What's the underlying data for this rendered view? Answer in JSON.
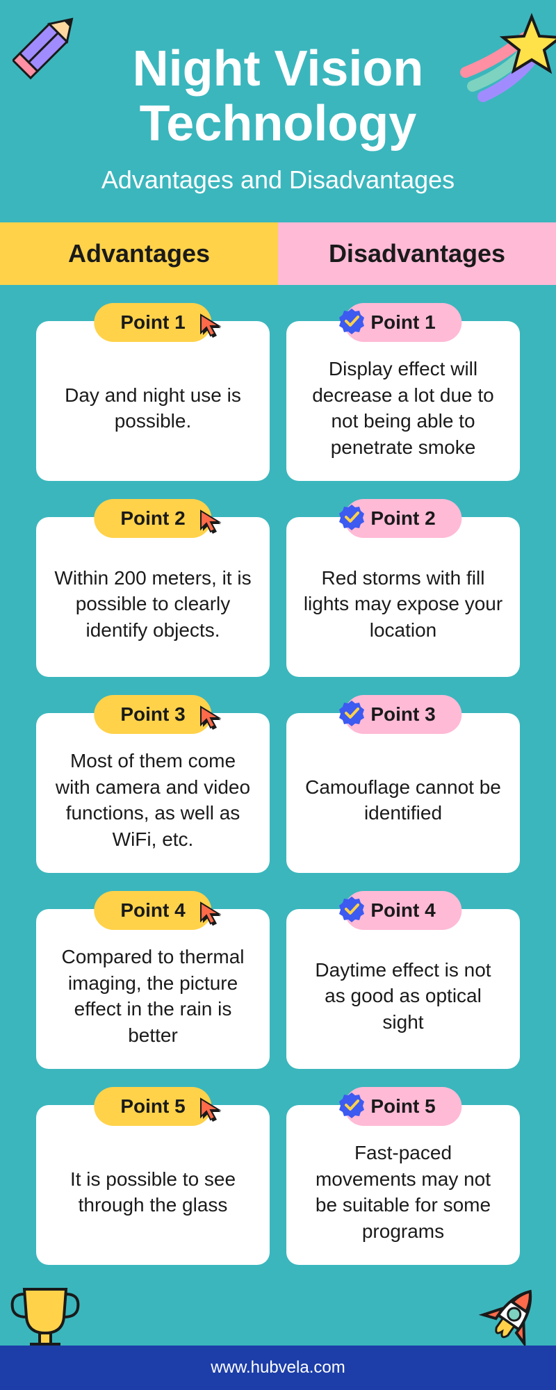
{
  "title": "Night Vision Technology",
  "subtitle": "Advantages and Disadvantages",
  "columns": {
    "advantages_label": "Advantages",
    "disadvantages_label": "Disadvantages"
  },
  "colors": {
    "background": "#3bb6bd",
    "adv_color": "#ffd24a",
    "dis_color": "#ffbad6",
    "card_bg": "#ffffff",
    "footer_bg": "#1d3ea8",
    "title_color": "#ffffff",
    "text_color": "#1a1a1a",
    "cursor_fill": "#ff6b4a",
    "cursor_shadow": "#1a1a1a",
    "badge_fill": "#3d5af1",
    "badge_check": "#ffd24a"
  },
  "typography": {
    "title_size": 72,
    "subtitle_size": 36,
    "header_size": 36,
    "pill_size": 28,
    "body_size": 28,
    "footer_size": 24
  },
  "layout": {
    "card_radius": 18,
    "pill_radius": 999,
    "card_min_height": 230
  },
  "advantages": [
    {
      "pill": "Point 1",
      "text": "Day and night use is possible."
    },
    {
      "pill": "Point 2",
      "text": "Within 200 meters, it is possible to clearly identify objects."
    },
    {
      "pill": "Point 3",
      "text": "Most of them come with camera and video functions, as well as WiFi, etc."
    },
    {
      "pill": "Point 4",
      "text": "Compared to thermal imaging, the picture effect in the rain is better"
    },
    {
      "pill": "Point 5",
      "text": "It is possible to see through the glass"
    }
  ],
  "disadvantages": [
    {
      "pill": "Point 1",
      "text": "Display effect will decrease a lot due to not being able to penetrate smoke"
    },
    {
      "pill": "Point 2",
      "text": "Red storms with fill lights may expose your location"
    },
    {
      "pill": "Point 3",
      "text": "Camouflage cannot be identified"
    },
    {
      "pill": "Point 4",
      "text": "Daytime effect is not as good as optical sight"
    },
    {
      "pill": "Point 5",
      "text": "Fast-paced movements may not be suitable for some programs"
    }
  ],
  "footer": "www.hubvela.com",
  "decorations": {
    "pencil": "pencil-icon",
    "star": "shooting-star-icon",
    "trophy": "trophy-icon",
    "rocket": "rocket-icon"
  }
}
